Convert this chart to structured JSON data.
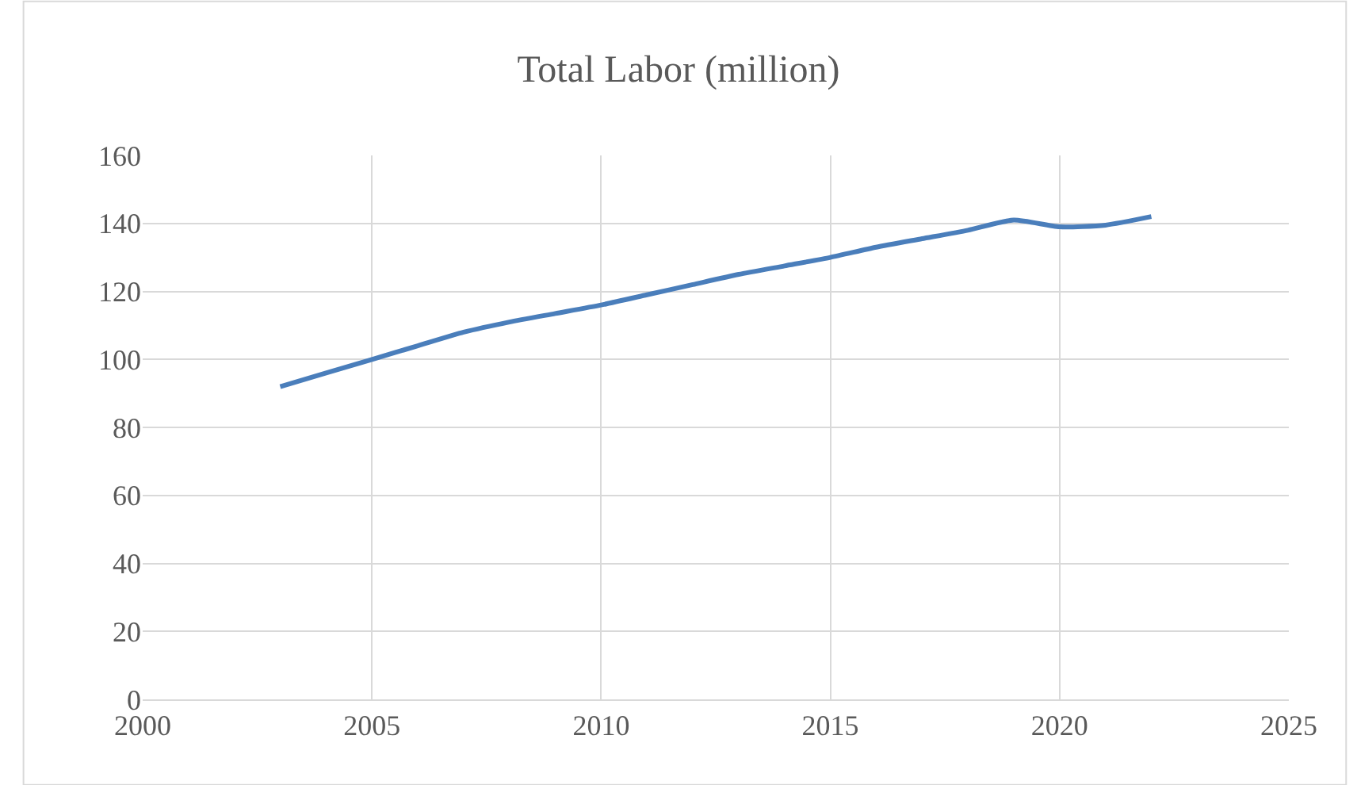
{
  "chart_data": {
    "type": "line",
    "title": "Total Labor (million)",
    "x": [
      2003,
      2004,
      2005,
      2006,
      2007,
      2008,
      2009,
      2010,
      2011,
      2012,
      2013,
      2014,
      2015,
      2016,
      2017,
      2018,
      2019,
      2020,
      2021,
      2022
    ],
    "series": [
      {
        "color": "#4a7ebb",
        "values": [
          92,
          96,
          100,
          104,
          108,
          111,
          113.5,
          116,
          119,
          122,
          125,
          127.5,
          130,
          133,
          135.5,
          138,
          141,
          139,
          139.5,
          142
        ]
      }
    ],
    "xlim": [
      2000,
      2025
    ],
    "xticks": [
      2000,
      2005,
      2010,
      2015,
      2020,
      2025
    ],
    "ylim": [
      0,
      160
    ],
    "yticks": [
      0,
      20,
      40,
      60,
      80,
      100,
      120,
      140,
      160
    ],
    "grid": true,
    "marker": "none",
    "line_style": "solid"
  }
}
